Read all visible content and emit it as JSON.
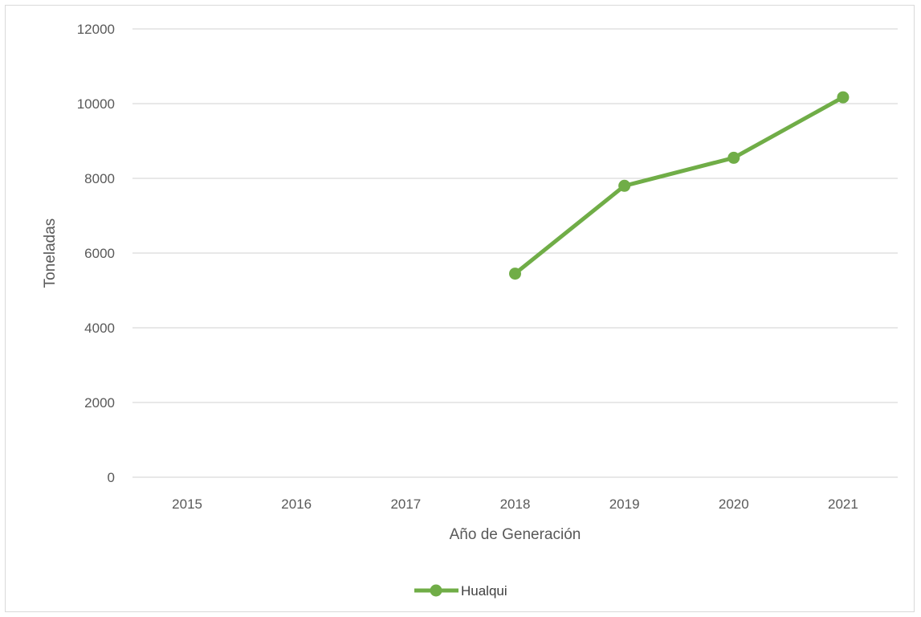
{
  "chart_data": {
    "type": "line",
    "title": "",
    "xlabel": "Año de Generación",
    "ylabel": "Toneladas",
    "categories": [
      "2015",
      "2016",
      "2017",
      "2018",
      "2019",
      "2020",
      "2021"
    ],
    "ylim": [
      0,
      12000
    ],
    "yticks": [
      "0",
      "2000",
      "4000",
      "6000",
      "8000",
      "10000",
      "12000"
    ],
    "grid": true,
    "legend_position": "bottom",
    "series": [
      {
        "name": "Hualqui",
        "color": "#70ad47",
        "values": [
          null,
          null,
          null,
          5450,
          7800,
          8550,
          10170
        ]
      }
    ]
  }
}
